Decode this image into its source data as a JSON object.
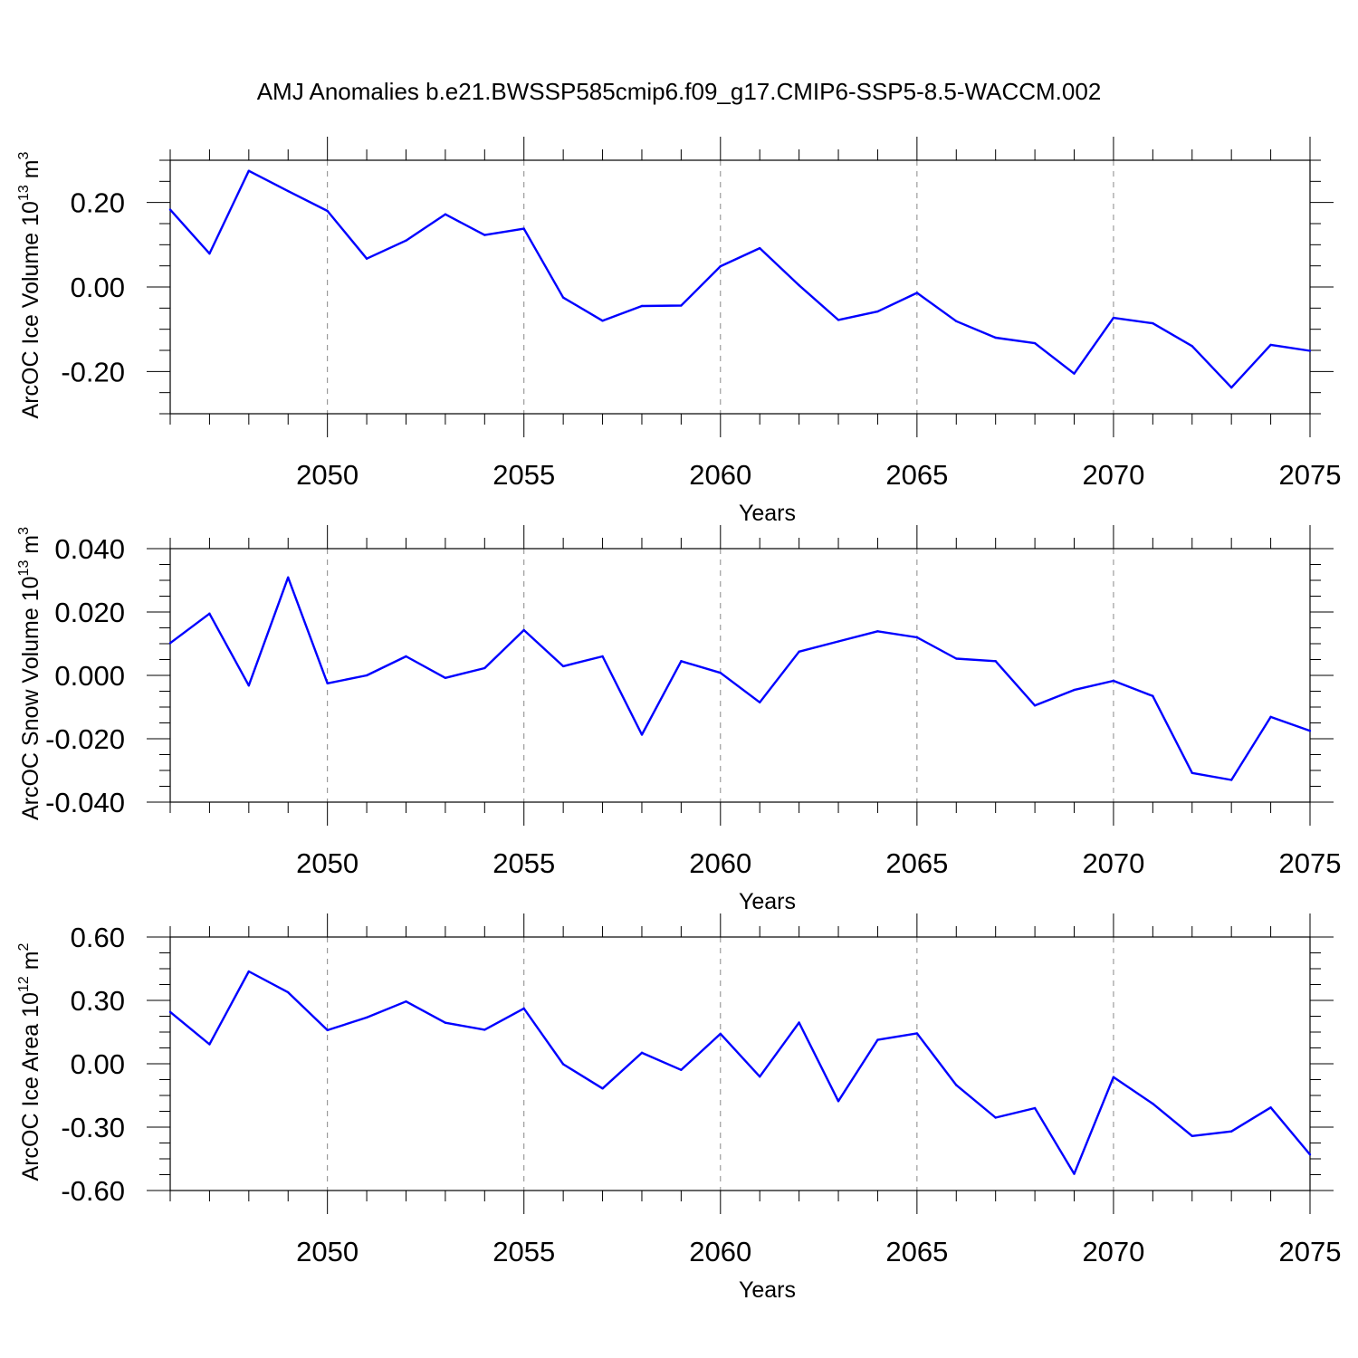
{
  "title": "AMJ Anomalies b.e21.BWSSP585cmip6.f09_g17.CMIP6-SSP5-8.5-WACCM.002",
  "colors": {
    "line": "#0000ff",
    "axis": "#000000",
    "grid": "#888888",
    "background": "#ffffff"
  },
  "chart_data": [
    {
      "type": "line",
      "ylabel_main": "ArcOC Ice Volume 10",
      "ylabel_exp": "13",
      "ylabel_unit": " m",
      "ylabel_unit_exp": "3",
      "xlabel": "Years",
      "xlim": [
        2046,
        2075
      ],
      "ylim": [
        -0.3,
        0.3
      ],
      "xticks": [
        2050,
        2055,
        2060,
        2065,
        2070,
        2075
      ],
      "xtick_labels": [
        "2050",
        "2055",
        "2060",
        "2065",
        "2070",
        "2075"
      ],
      "yticks": [
        -0.2,
        0.0,
        0.2
      ],
      "ytick_labels": [
        "-0.20",
        "0.00",
        "0.20"
      ],
      "x": [
        2046,
        2047,
        2048,
        2049,
        2050,
        2051,
        2052,
        2053,
        2054,
        2055,
        2056,
        2057,
        2058,
        2059,
        2060,
        2061,
        2062,
        2063,
        2064,
        2065,
        2066,
        2067,
        2068,
        2069,
        2070,
        2071,
        2072,
        2073,
        2074,
        2075
      ],
      "values": [
        0.183,
        0.079,
        0.275,
        0.227,
        0.18,
        0.067,
        0.11,
        0.172,
        0.123,
        0.138,
        -0.025,
        -0.08,
        -0.045,
        -0.044,
        0.049,
        0.092,
        0.004,
        -0.078,
        -0.058,
        -0.014,
        -0.081,
        -0.12,
        -0.133,
        -0.205,
        -0.073,
        -0.086,
        -0.14,
        -0.238,
        -0.137,
        -0.151
      ]
    },
    {
      "type": "line",
      "ylabel_main": "ArcOC Snow Volume 10",
      "ylabel_exp": "13",
      "ylabel_unit": " m",
      "ylabel_unit_exp": "3",
      "xlabel": "Years",
      "xlim": [
        2046,
        2075
      ],
      "ylim": [
        -0.04,
        0.04
      ],
      "xticks": [
        2050,
        2055,
        2060,
        2065,
        2070,
        2075
      ],
      "xtick_labels": [
        "2050",
        "2055",
        "2060",
        "2065",
        "2070",
        "2075"
      ],
      "yticks": [
        -0.04,
        -0.02,
        0.0,
        0.02,
        0.04
      ],
      "ytick_labels": [
        "-0.040",
        "-0.020",
        "0.000",
        "0.020",
        "0.040"
      ],
      "x": [
        2046,
        2047,
        2048,
        2049,
        2050,
        2051,
        2052,
        2053,
        2054,
        2055,
        2056,
        2057,
        2058,
        2059,
        2060,
        2061,
        2062,
        2063,
        2064,
        2065,
        2066,
        2067,
        2068,
        2069,
        2070,
        2071,
        2072,
        2073,
        2074,
        2075
      ],
      "values": [
        0.0102,
        0.0195,
        -0.0032,
        0.0309,
        -0.0025,
        0.0,
        0.006,
        -0.0008,
        0.0023,
        0.0143,
        0.0029,
        0.006,
        -0.0187,
        0.0045,
        0.0008,
        -0.0085,
        0.0075,
        0.0107,
        0.0139,
        0.012,
        0.0053,
        0.0045,
        -0.0095,
        -0.0046,
        -0.0017,
        -0.0065,
        -0.0308,
        -0.033,
        -0.0131,
        -0.0175
      ]
    },
    {
      "type": "line",
      "ylabel_main": "ArcOC Ice Area 10",
      "ylabel_exp": "12",
      "ylabel_unit": " m",
      "ylabel_unit_exp": "2",
      "xlabel": "Years",
      "xlim": [
        2046,
        2075
      ],
      "ylim": [
        -0.6,
        0.6
      ],
      "xticks": [
        2050,
        2055,
        2060,
        2065,
        2070,
        2075
      ],
      "xtick_labels": [
        "2050",
        "2055",
        "2060",
        "2065",
        "2070",
        "2075"
      ],
      "yticks": [
        -0.6,
        -0.3,
        0.0,
        0.3,
        0.6
      ],
      "ytick_labels": [
        "-0.60",
        "-0.30",
        "0.00",
        "0.30",
        "0.60"
      ],
      "x": [
        2046,
        2047,
        2048,
        2049,
        2050,
        2051,
        2052,
        2053,
        2054,
        2055,
        2056,
        2057,
        2058,
        2059,
        2060,
        2061,
        2062,
        2063,
        2064,
        2065,
        2066,
        2067,
        2068,
        2069,
        2070,
        2071,
        2072,
        2073,
        2074,
        2075
      ],
      "values": [
        0.245,
        0.092,
        0.437,
        0.338,
        0.159,
        0.219,
        0.295,
        0.194,
        0.161,
        0.262,
        -0.002,
        -0.117,
        0.052,
        -0.029,
        0.142,
        -0.061,
        0.195,
        -0.177,
        0.113,
        0.144,
        -0.101,
        -0.255,
        -0.21,
        -0.521,
        -0.063,
        -0.189,
        -0.342,
        -0.32,
        -0.207,
        -0.43
      ]
    }
  ]
}
